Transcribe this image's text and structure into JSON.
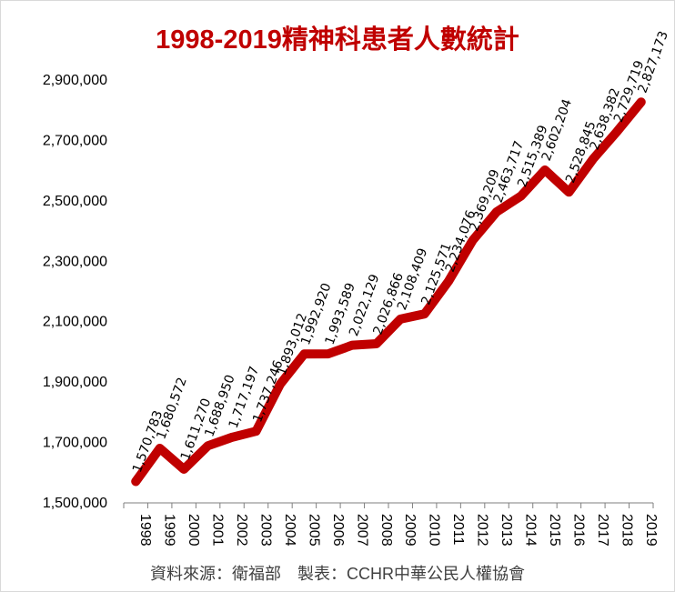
{
  "chart_data": {
    "type": "line",
    "title": "1998-2019精神科患者人數統計",
    "xlabel": "",
    "ylabel": "",
    "categories": [
      "1998",
      "1999",
      "2000",
      "2001",
      "2002",
      "2003",
      "2004",
      "2005",
      "2006",
      "2007",
      "2008",
      "2009",
      "2010",
      "2011",
      "2012",
      "2013",
      "2014",
      "2015",
      "2016",
      "2017",
      "2018",
      "2019"
    ],
    "series": [
      {
        "values": [
          1570783,
          1680572,
          1611270,
          1688950,
          1717197,
          1737246,
          1893012,
          1992920,
          1993589,
          2022129,
          2026866,
          2108409,
          2125571,
          2234076,
          2369209,
          2463717,
          2515389,
          2602204,
          2528845,
          2638382,
          2729719,
          2827173
        ],
        "labels": [
          "1,570,783",
          "1,680,572",
          "1,611,270",
          "1,688,950",
          "1,717,197",
          "1,737,246",
          "1,893,012",
          "1,992,920",
          "1,993,589",
          "2,022,129",
          "2,026,866",
          "2,108,409",
          "2,125,571",
          "2,234,076",
          "2,369,209",
          "2,463,717",
          "2,515,389",
          "2,602,204",
          "2,528,845",
          "2,638,382",
          "2,729,719",
          "2,827,173"
        ]
      }
    ],
    "ylim": [
      1500000,
      2900000
    ],
    "yticks": [
      1500000,
      1700000,
      1900000,
      2100000,
      2300000,
      2500000,
      2700000,
      2900000
    ],
    "ytick_labels": [
      "1,500,000",
      "1,700,000",
      "1,900,000",
      "2,100,000",
      "2,300,000",
      "2,500,000",
      "2,700,000",
      "2,900,000"
    ],
    "grid": false,
    "legend": "none",
    "colors": {
      "line": "#c00000",
      "title": "#c00000"
    }
  },
  "footer": {
    "source": "資料來源：衛福部　製表：CCHR中華公民人權協會"
  }
}
